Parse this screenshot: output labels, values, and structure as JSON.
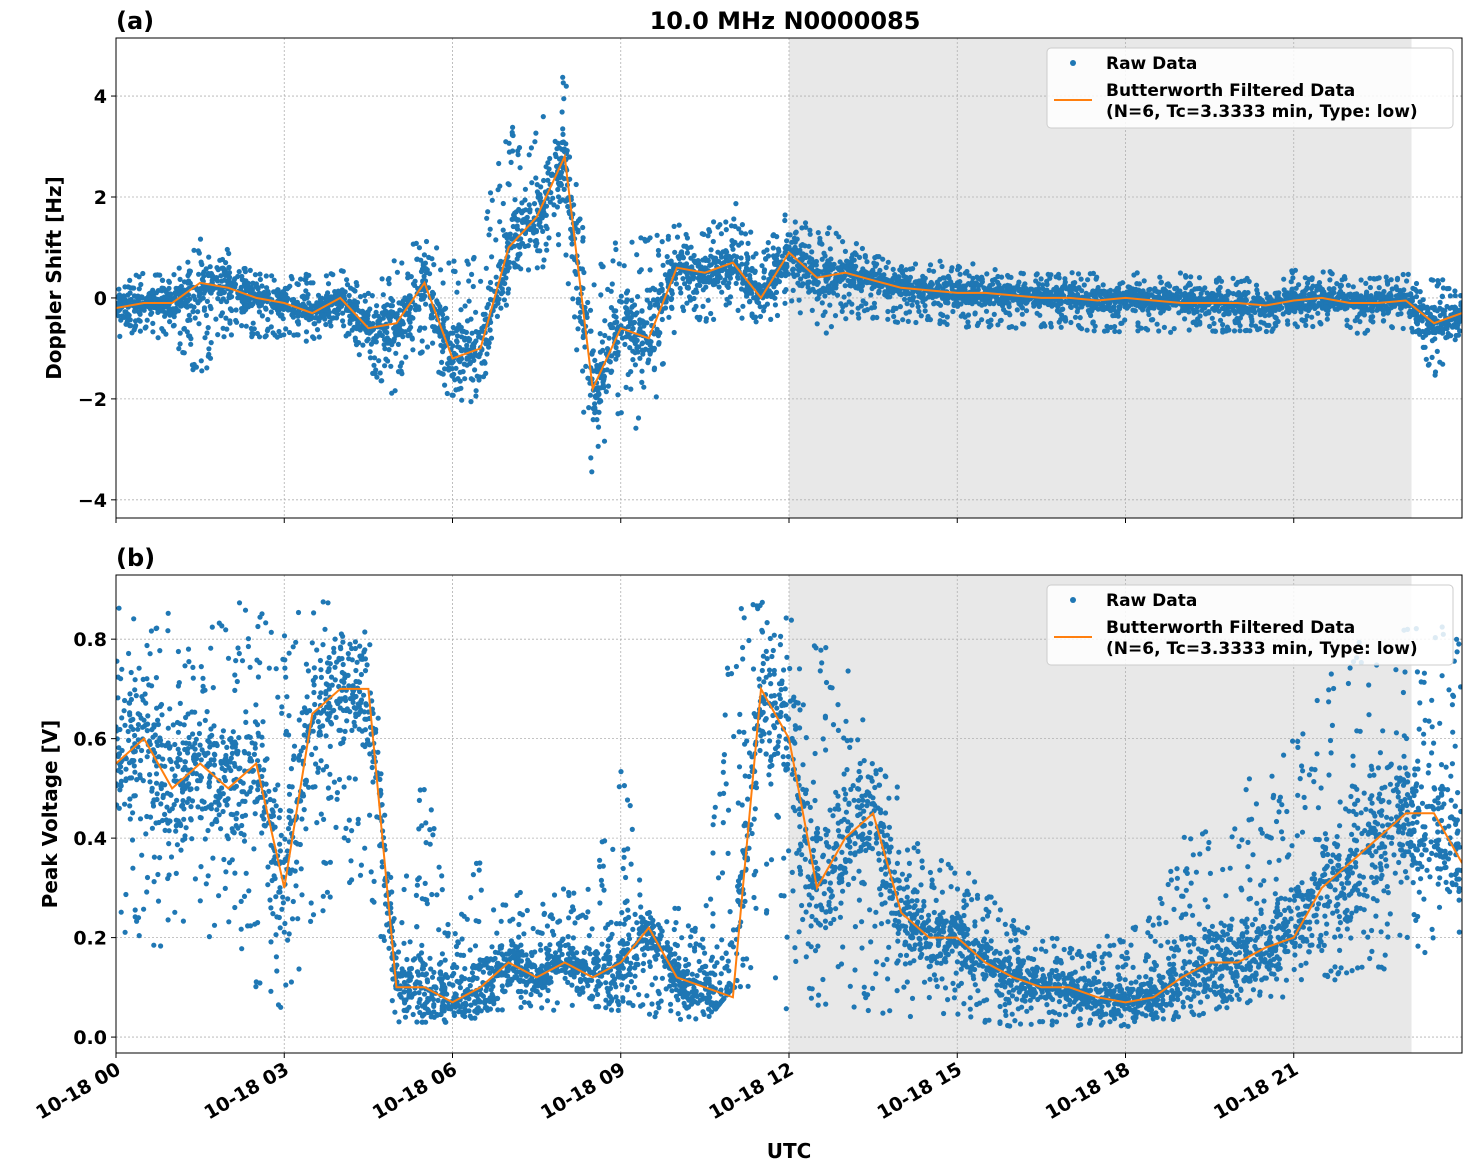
{
  "title": "10.0 MHz N0000085",
  "xlabel": "UTC",
  "x_tick_labels": [
    "10-18 00",
    "10-18 03",
    "10-18 06",
    "10-18 09",
    "10-18 12",
    "10-18 15",
    "10-18 18",
    "10-18 21"
  ],
  "colors": {
    "raw": "#1f77b4",
    "filtered": "#ff7f0e",
    "shade": "#e8e8e8"
  },
  "chart_data": [
    {
      "type": "scatter",
      "panel_label": "(a)",
      "title": "10.0 MHz N0000085",
      "xlabel": "",
      "ylabel": "Doppler Shift [Hz]",
      "x_unit": "hours UTC on 10-18",
      "xlim": [
        0,
        24
      ],
      "ylim": [
        -4.36,
        5.15
      ],
      "y_ticks": [
        -4,
        -2,
        0,
        2,
        4
      ],
      "y_tick_labels": [
        "−4",
        "−2",
        "0",
        "2",
        "4"
      ],
      "grid": true,
      "shaded_x_range": [
        12,
        23.1
      ],
      "legend_placement": "top-right",
      "legend": [
        "Raw Data",
        "Butterworth Filtered Data",
        "(N=6, Tc=3.3333 min, Type: low)"
      ],
      "x": [
        0,
        0.5,
        1,
        1.5,
        2,
        2.5,
        3,
        3.5,
        4,
        4.5,
        5,
        5.5,
        6,
        6.5,
        7,
        7.5,
        8,
        8.5,
        9,
        9.5,
        10,
        10.5,
        11,
        11.5,
        12,
        12.5,
        13,
        13.5,
        14,
        14.5,
        15,
        15.5,
        16,
        16.5,
        17,
        17.5,
        18,
        18.5,
        19,
        19.5,
        20,
        20.5,
        21,
        21.5,
        22,
        22.5,
        23,
        23.5,
        24
      ],
      "series": [
        {
          "name": "Butterworth Filtered Data",
          "values": [
            -0.2,
            -0.1,
            -0.1,
            0.3,
            0.2,
            0.0,
            -0.1,
            -0.3,
            0.0,
            -0.6,
            -0.5,
            0.3,
            -1.2,
            -1.0,
            1.0,
            1.6,
            2.8,
            -1.8,
            -0.6,
            -0.8,
            0.6,
            0.5,
            0.7,
            0.0,
            0.9,
            0.4,
            0.5,
            0.35,
            0.2,
            0.15,
            0.1,
            0.1,
            0.05,
            0.0,
            0.0,
            -0.05,
            0.0,
            -0.05,
            -0.1,
            -0.1,
            -0.1,
            -0.15,
            -0.05,
            0.0,
            -0.1,
            -0.1,
            -0.05,
            -0.5,
            -0.3
          ]
        },
        {
          "name": "Raw Data (upper envelope)",
          "values": [
            0.4,
            0.5,
            0.5,
            1.2,
            1.0,
            0.5,
            0.4,
            0.5,
            0.6,
            0.2,
            1.0,
            1.3,
            0.8,
            1.5,
            3.5,
            3.5,
            4.6,
            0.5,
            1.3,
            1.2,
            1.5,
            1.3,
            2.0,
            1.0,
            1.8,
            1.8,
            1.2,
            0.9,
            0.7,
            0.7,
            0.8,
            0.6,
            0.5,
            0.5,
            0.5,
            0.5,
            0.5,
            0.5,
            0.5,
            0.4,
            0.4,
            0.4,
            0.6,
            0.6,
            0.4,
            0.4,
            0.5,
            0.4,
            0.3
          ]
        },
        {
          "name": "Raw Data (lower envelope)",
          "values": [
            -0.8,
            -0.8,
            -0.8,
            -1.7,
            -0.8,
            -0.9,
            -0.8,
            -0.9,
            -0.6,
            -1.5,
            -2.0,
            -1.0,
            -2.2,
            -2.0,
            0.0,
            0.5,
            0.8,
            -3.9,
            -2.7,
            -2.5,
            -0.5,
            -0.5,
            -0.4,
            -0.5,
            -0.3,
            -0.8,
            -0.5,
            -0.4,
            -0.5,
            -0.5,
            -0.6,
            -0.6,
            -0.6,
            -0.6,
            -0.6,
            -0.7,
            -0.7,
            -0.7,
            -0.7,
            -0.7,
            -0.7,
            -0.7,
            -0.6,
            -0.6,
            -0.7,
            -0.7,
            -0.6,
            -1.6,
            -0.8
          ]
        }
      ]
    },
    {
      "type": "scatter",
      "panel_label": "(b)",
      "xlabel": "UTC",
      "ylabel": "Peak Voltage [V]",
      "x_unit": "hours UTC on 10-18",
      "xlim": [
        0,
        24
      ],
      "ylim": [
        -0.032,
        0.929
      ],
      "y_ticks": [
        0.0,
        0.2,
        0.4,
        0.6,
        0.8
      ],
      "y_tick_labels": [
        "0.0",
        "0.2",
        "0.4",
        "0.6",
        "0.8"
      ],
      "grid": true,
      "shaded_x_range": [
        12,
        23.1
      ],
      "legend_placement": "top-right",
      "legend": [
        "Raw Data",
        "Butterworth Filtered Data",
        "(N=6, Tc=3.3333 min, Type: low)"
      ],
      "x": [
        0,
        0.5,
        1,
        1.5,
        2,
        2.5,
        3,
        3.5,
        4,
        4.5,
        5,
        5.5,
        6,
        6.5,
        7,
        7.5,
        8,
        8.5,
        9,
        9.5,
        10,
        10.5,
        11,
        11.5,
        12,
        12.5,
        13,
        13.5,
        14,
        14.5,
        15,
        15.5,
        16,
        16.5,
        17,
        17.5,
        18,
        18.5,
        19,
        19.5,
        20,
        20.5,
        21,
        21.5,
        22,
        22.5,
        23,
        23.5,
        24
      ],
      "series": [
        {
          "name": "Butterworth Filtered Data",
          "values": [
            0.55,
            0.6,
            0.5,
            0.55,
            0.5,
            0.55,
            0.3,
            0.65,
            0.7,
            0.7,
            0.1,
            0.1,
            0.07,
            0.1,
            0.15,
            0.12,
            0.15,
            0.12,
            0.15,
            0.22,
            0.12,
            0.1,
            0.08,
            0.7,
            0.6,
            0.3,
            0.4,
            0.45,
            0.25,
            0.2,
            0.2,
            0.15,
            0.12,
            0.1,
            0.1,
            0.08,
            0.07,
            0.08,
            0.12,
            0.15,
            0.15,
            0.18,
            0.2,
            0.3,
            0.35,
            0.4,
            0.45,
            0.45,
            0.35
          ]
        },
        {
          "name": "Raw Data (upper envelope)",
          "values": [
            0.87,
            0.86,
            0.87,
            0.87,
            0.87,
            0.88,
            0.86,
            0.88,
            0.88,
            0.88,
            0.2,
            0.56,
            0.19,
            0.38,
            0.3,
            0.28,
            0.3,
            0.3,
            0.58,
            0.25,
            0.27,
            0.25,
            0.87,
            0.88,
            0.86,
            0.8,
            0.76,
            0.6,
            0.5,
            0.4,
            0.35,
            0.3,
            0.25,
            0.2,
            0.2,
            0.2,
            0.21,
            0.25,
            0.4,
            0.42,
            0.5,
            0.55,
            0.6,
            0.7,
            0.8,
            0.8,
            0.85,
            0.85,
            0.8
          ]
        },
        {
          "name": "Raw Data (lower envelope)",
          "values": [
            0.2,
            0.2,
            0.15,
            0.2,
            0.2,
            0.1,
            0.05,
            0.2,
            0.3,
            0.3,
            0.03,
            0.03,
            0.03,
            0.04,
            0.05,
            0.05,
            0.05,
            0.05,
            0.05,
            0.04,
            0.03,
            0.03,
            0.1,
            0.1,
            0.05,
            0.05,
            0.05,
            0.05,
            0.04,
            0.04,
            0.03,
            0.03,
            0.02,
            0.02,
            0.02,
            0.02,
            0.02,
            0.03,
            0.03,
            0.04,
            0.05,
            0.06,
            0.08,
            0.1,
            0.1,
            0.12,
            0.15,
            0.15,
            0.12
          ]
        }
      ]
    }
  ]
}
